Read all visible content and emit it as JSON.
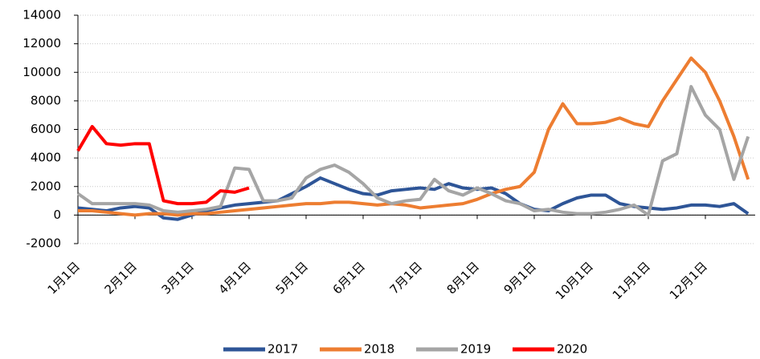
{
  "chart_data": {
    "type": "line",
    "categories": [
      "1月1日",
      null,
      null,
      null,
      "2月1日",
      null,
      null,
      null,
      "3月1日",
      null,
      null,
      null,
      "4月1日",
      null,
      null,
      null,
      "5月1日",
      null,
      null,
      null,
      "6月1日",
      null,
      null,
      null,
      "7月1日",
      null,
      null,
      null,
      "8月1日",
      null,
      null,
      null,
      "9月1日",
      null,
      null,
      null,
      "10月1日",
      null,
      null,
      null,
      "11月1日",
      null,
      null,
      null,
      "12月1日",
      null,
      null,
      null
    ],
    "series": [
      {
        "name": "2017",
        "color": "#2e5597",
        "values": [
          500,
          400,
          300,
          500,
          600,
          500,
          -200,
          -300,
          0,
          300,
          500,
          700,
          800,
          900,
          1000,
          1500,
          2000,
          2600,
          2200,
          1800,
          1500,
          1400,
          1700,
          1800,
          1900,
          1800,
          2200,
          1900,
          1800,
          1900,
          1500,
          800,
          400,
          300,
          800,
          1200,
          1400,
          1400,
          800,
          600,
          500,
          400,
          500,
          700,
          700,
          600,
          800,
          100
        ]
      },
      {
        "name": "2018",
        "color": "#ed7d31",
        "values": [
          300,
          300,
          200,
          100,
          0,
          100,
          100,
          0,
          100,
          100,
          200,
          300,
          400,
          500,
          600,
          700,
          800,
          800,
          900,
          900,
          800,
          700,
          800,
          700,
          500,
          600,
          700,
          800,
          1100,
          1500,
          1800,
          2000,
          3000,
          6000,
          7800,
          6400,
          6400,
          6500,
          6800,
          6400,
          6200,
          8000,
          9500,
          11000,
          10000,
          8000,
          5500,
          2500
        ]
      },
      {
        "name": "2019",
        "color": "#a5a5a5",
        "values": [
          1500,
          800,
          800,
          800,
          800,
          700,
          300,
          200,
          300,
          400,
          600,
          3300,
          3200,
          1000,
          1000,
          1200,
          2600,
          3200,
          3500,
          3000,
          2200,
          1200,
          800,
          1000,
          1100,
          2500,
          1700,
          1400,
          1900,
          1500,
          1000,
          800,
          300,
          400,
          200,
          100,
          100,
          200,
          400,
          700,
          0,
          3800,
          4300,
          9000,
          7000,
          6000,
          2500,
          5500
        ]
      },
      {
        "name": "2020",
        "color": "#ff0000",
        "values": [
          4500,
          6200,
          5000,
          4900,
          5000,
          5000,
          1000,
          800,
          800,
          900,
          1700,
          1600,
          1900,
          null,
          null,
          null,
          null,
          null,
          null,
          null,
          null,
          null,
          null,
          null,
          null,
          null,
          null,
          null,
          null,
          null,
          null,
          null,
          null,
          null,
          null,
          null,
          null,
          null,
          null,
          null,
          null,
          null,
          null,
          null,
          null,
          null,
          null,
          null
        ]
      }
    ],
    "ylim": [
      -2000,
      14000
    ],
    "yticks": [
      -2000,
      0,
      2000,
      4000,
      6000,
      8000,
      10000,
      12000,
      14000
    ],
    "grid": true
  }
}
